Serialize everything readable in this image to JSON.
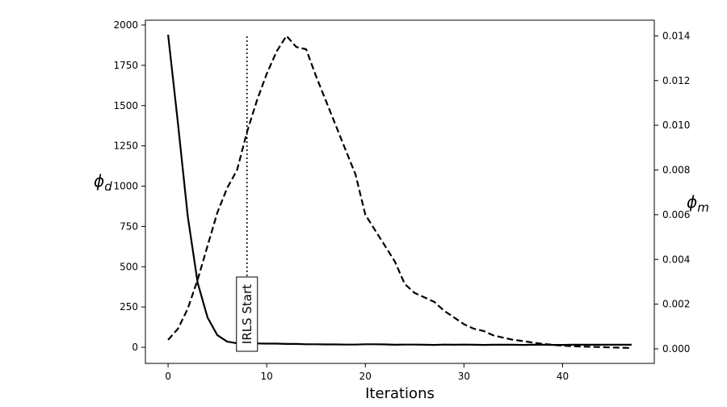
{
  "chart_data": {
    "type": "line",
    "xlabel": "Iterations",
    "ylabel_left": "ϕ_d",
    "ylabel_right": "ϕ_m",
    "xlim": [
      -2.3,
      49.3
    ],
    "ylim_left": [
      -100,
      2030
    ],
    "ylim_right": [
      -0.00065,
      0.0147
    ],
    "x_ticks": [
      0,
      10,
      20,
      30,
      40
    ],
    "y_ticks_left": [
      0,
      250,
      500,
      750,
      1000,
      1250,
      1500,
      1750,
      2000
    ],
    "y_ticks_right": [
      0.0,
      0.002,
      0.004,
      0.006,
      0.008,
      0.01,
      0.012,
      0.014
    ],
    "y_tick_labels_right": [
      "0.000",
      "0.002",
      "0.004",
      "0.006",
      "0.008",
      "0.010",
      "0.012",
      "0.014"
    ],
    "grid": false,
    "series": [
      {
        "axis": "left",
        "style": "solid",
        "x": [
          0,
          1,
          2,
          3,
          4,
          5,
          6,
          7,
          8,
          9,
          10,
          11,
          12,
          13,
          14,
          15,
          16,
          17,
          18,
          19,
          20,
          21,
          22,
          23,
          24,
          25,
          26,
          27,
          28,
          29,
          30,
          31,
          32,
          33,
          34,
          35,
          36,
          37,
          38,
          39,
          40,
          41,
          42,
          43,
          44,
          45,
          46,
          47
        ],
        "values": [
          1940,
          1390,
          810,
          400,
          185,
          75,
          35,
          25,
          24,
          24,
          23,
          23,
          21,
          21,
          19,
          19,
          18,
          18,
          17,
          17,
          19,
          19,
          18,
          16,
          17,
          17,
          16,
          15,
          17,
          16,
          17,
          16,
          15,
          16,
          16,
          16,
          15,
          16,
          16,
          15,
          15,
          16,
          16,
          16,
          16,
          16,
          16,
          16
        ]
      },
      {
        "axis": "right",
        "style": "dashed",
        "x": [
          0,
          1,
          2,
          3,
          4,
          5,
          6,
          7,
          8,
          9,
          10,
          11,
          12,
          13,
          14,
          15,
          16,
          17,
          18,
          19,
          20,
          21,
          22,
          23,
          24,
          25,
          26,
          27,
          28,
          29,
          30,
          31,
          32,
          33,
          34,
          35,
          36,
          37,
          38,
          39,
          40,
          41,
          42,
          43,
          44,
          45,
          46,
          47
        ],
        "values": [
          0.0004,
          0.0009,
          0.0018,
          0.0031,
          0.0046,
          0.0061,
          0.0072,
          0.008,
          0.0097,
          0.0111,
          0.0123,
          0.0133,
          0.014,
          0.0135,
          0.0134,
          0.0122,
          0.0111,
          0.01,
          0.0089,
          0.0078,
          0.006,
          0.0053,
          0.0046,
          0.0039,
          0.0029,
          0.0025,
          0.0023,
          0.0021,
          0.0017,
          0.0014,
          0.0011,
          0.0009,
          0.0008,
          0.0006,
          0.0005,
          0.0004,
          0.00035,
          0.00028,
          0.00022,
          0.00018,
          0.00014,
          0.00012,
          0.0001,
          9e-05,
          8e-05,
          6e-05,
          5e-05,
          4e-05
        ]
      }
    ],
    "vline": {
      "x": 8,
      "style": "dotted",
      "label": "IRLS Start"
    }
  }
}
